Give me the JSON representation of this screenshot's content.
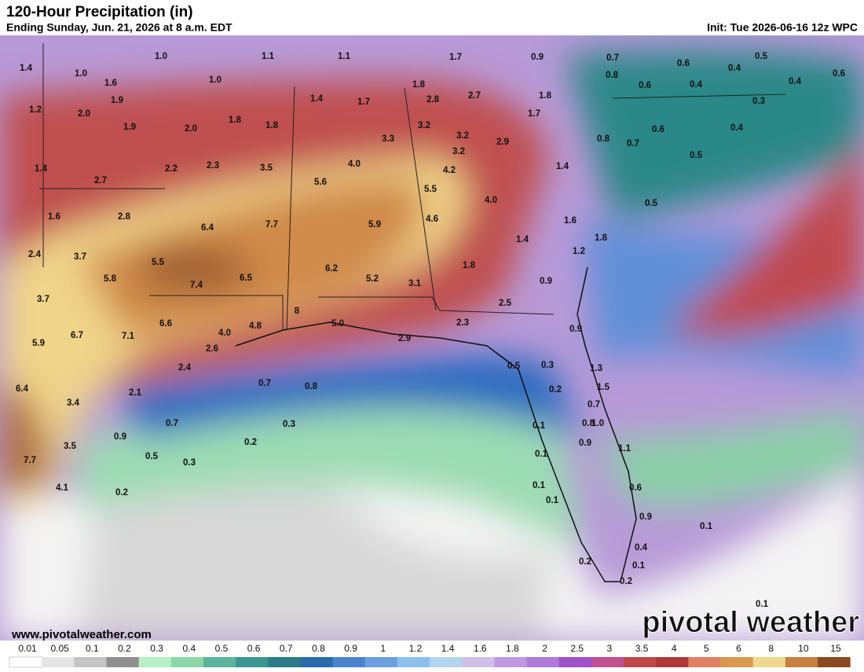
{
  "header": {
    "title": "120-Hour Precipitation (in)",
    "subtitle": "Ending Sunday, Jun. 21, 2026 at 8 a.m. EDT",
    "init": "Init: Tue 2026-06-16 12z WPC"
  },
  "map": {
    "labels": [
      "1.4",
      "1.0",
      "1.1",
      "1.1",
      "1.7",
      "0.9",
      "0.7",
      "0.6",
      "0.5",
      "1.0",
      "0.4",
      "0.8",
      "1.6",
      "1.0",
      "1.8",
      "0.6",
      "0.4",
      "0.4",
      "0.6",
      "1.2",
      "1.9",
      "2.0",
      "1.4",
      "1.7",
      "2.8",
      "2.7",
      "1.8",
      "0.3",
      "1.8",
      "1.8",
      "3.2",
      "1.7",
      "1.9",
      "2.0",
      "3.2",
      "0.6",
      "0.4",
      "3.3",
      "2.9",
      "0.8",
      "0.7",
      "3.2",
      "0.5",
      "1.4",
      "2.2",
      "2.3",
      "3.5",
      "4.0",
      "4.2",
      "1.4",
      "2.7",
      "5.6",
      "5.5",
      "4.0",
      "0.5",
      "1.6",
      "2.8",
      "7.7",
      "5.9",
      "4.6",
      "1.6",
      "6.4",
      "1.8",
      "1.4",
      "2.4",
      "3.7",
      "5.5",
      "1.2",
      "6.2",
      "1.8",
      "5.8",
      "6.5",
      "5.2",
      "7.4",
      "3.1",
      "0.9",
      "3.7",
      "2.5",
      "8",
      "4.8",
      "5.0",
      "2.3",
      "0.9",
      "6.6",
      "4.0",
      "5.9",
      "6.7",
      "7.1",
      "2.6",
      "2.9",
      "2.4",
      "0.5",
      "0.3",
      "1.3",
      "6.4",
      "0.7",
      "0.8",
      "2.1",
      "1.5",
      "0.2",
      "3.4",
      "0.7",
      "0.7",
      "0.3",
      "0.1",
      "0.8",
      "1.0",
      "0.9",
      "0.2",
      "0.9",
      "3.5",
      "1.1",
      "0.1",
      "7.7",
      "0.5",
      "0.3",
      "4.1",
      "0.2",
      "0.1",
      "0.6",
      "0.1",
      "0.9",
      "0.1",
      "0.4",
      "0.1",
      "0.2",
      "0.2",
      "0.1"
    ]
  },
  "footer": {
    "website": "www.pivotalweather.com",
    "brand": "pivotal weather"
  },
  "legend": {
    "labels": [
      "0.01",
      "0.05",
      "0.1",
      "0.2",
      "0.3",
      "0.4",
      "0.5",
      "0.6",
      "0.7",
      "0.8",
      "0.9",
      "1",
      "1.2",
      "1.4",
      "1.6",
      "1.8",
      "2",
      "2.5",
      "3",
      "3.5",
      "4",
      "5",
      "6",
      "8",
      "10",
      "15"
    ],
    "colors": [
      "#ffffff",
      "#e4e4e4",
      "#c4c4c4",
      "#8f8f8f",
      "#b4f0c4",
      "#8cd8a8",
      "#5cb49c",
      "#3a9690",
      "#2c7c86",
      "#2a6aa8",
      "#4a84d0",
      "#6aa0e0",
      "#8cc0ec",
      "#b4d4f0",
      "#d0c0e8",
      "#c09ae0",
      "#b07ad8",
      "#a050c8",
      "#c05090",
      "#c04848",
      "#b03838",
      "#e08060",
      "#d89850",
      "#f0d890",
      "#c88040",
      "#8a4a20"
    ]
  }
}
